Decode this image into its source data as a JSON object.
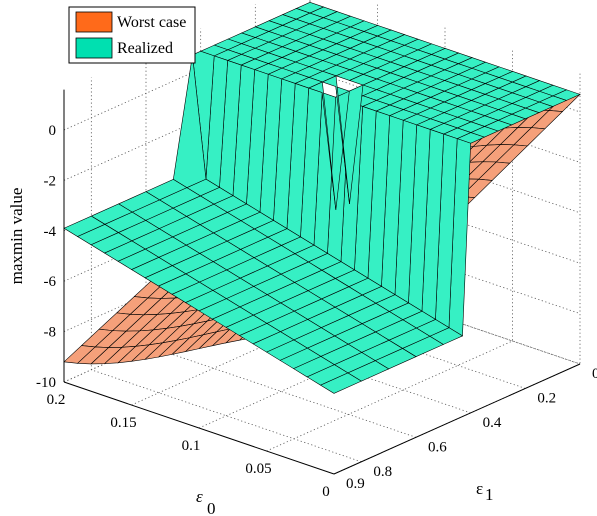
{
  "chart_data": {
    "type": "surface3d",
    "title": "",
    "zlabel": "maxmin value",
    "xlabel": "ε₀",
    "ylabel": "ε₁",
    "xlabel_main": "ε",
    "xlabel_sub": "0",
    "ylabel_main": "ε",
    "ylabel_sub": "1",
    "x_ticks": [
      "0.2",
      "0.15",
      "0.1",
      "0.05",
      "0"
    ],
    "y_ticks": [
      "0",
      "0.2",
      "0.4",
      "0.6",
      "0.8",
      "0.9"
    ],
    "z_ticks": [
      "0",
      "-2",
      "-4",
      "-6",
      "-8",
      "-10"
    ],
    "x_range": [
      0,
      0.2
    ],
    "y_range": [
      0,
      0.9
    ],
    "z_range": [
      -10,
      1
    ],
    "grid": true,
    "legend_position": "top-left",
    "series": [
      {
        "name": "Worst case",
        "color": "#f5a07a",
        "legend_color": "#ff6a1a",
        "x": [
          0,
          0.1,
          0.2
        ],
        "y": [
          0,
          0.5,
          0.9
        ],
        "z_description_points": [
          {
            "e0": 0.2,
            "e1": 0,
            "z": -4.5
          },
          {
            "e0": 0.2,
            "e1": 0.9,
            "z": -9.2
          },
          {
            "e0": 0,
            "e1": 0,
            "z": 0.7
          },
          {
            "e0": 0,
            "e1": 0.9,
            "z": -4.5
          }
        ]
      },
      {
        "name": "Realized",
        "color": "#36f0c4",
        "legend_color": "#00e0b0",
        "z_description_points": [
          {
            "e0": 0.2,
            "e1": 0,
            "z": 0.7
          },
          {
            "e0": 0.2,
            "e1": 0.42,
            "z": 0.7
          },
          {
            "e0": 0.2,
            "e1": 0.44,
            "z": -3.9
          },
          {
            "e0": 0.2,
            "e1": 0.9,
            "z": -3.9
          },
          {
            "e0": 0,
            "e1": 0,
            "z": 0.7
          },
          {
            "e0": 0,
            "e1": 0.4,
            "z": 0.7
          },
          {
            "e0": 0,
            "e1": 0.42,
            "z": -6.8
          }
        ]
      }
    ]
  }
}
